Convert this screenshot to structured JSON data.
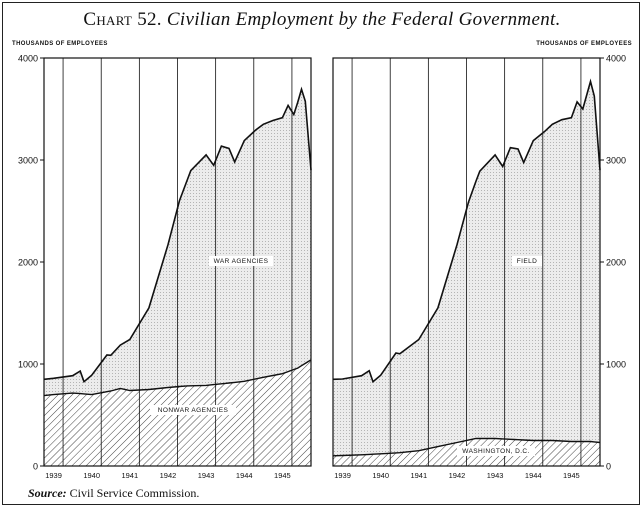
{
  "title": {
    "lead": "Chart 52.",
    "text": "Civilian Employment by the Federal Government."
  },
  "source": {
    "label": "Source:",
    "text": "Civil Service Commission."
  },
  "colors": {
    "ink": "#111111",
    "fill": "#e6e6e6",
    "hatch": "#444444",
    "background": "#ffffff"
  },
  "chart_data": [
    {
      "type": "area",
      "panel": "left",
      "ylabel": "THOUSANDS OF EMPLOYEES",
      "ylim": [
        0,
        4000
      ],
      "yticks": [
        0,
        1000,
        2000,
        3000,
        4000
      ],
      "xlim": [
        1938.75,
        1945.75
      ],
      "xticks": [
        1939,
        1940,
        1941,
        1942,
        1943,
        1944,
        1945
      ],
      "grid": "vertical lines at year boundaries",
      "stacked": true,
      "series": [
        {
          "name": "NONWAR AGENCIES",
          "fill": "hatched",
          "x": [
            1938.75,
            1939.0,
            1939.5,
            1939.7,
            1940.0,
            1940.5,
            1940.75,
            1941.0,
            1941.5,
            1942.0,
            1942.5,
            1943.0,
            1943.5,
            1944.0,
            1944.5,
            1945.0,
            1945.4,
            1945.75
          ],
          "values": [
            690,
            700,
            715,
            710,
            700,
            735,
            760,
            740,
            750,
            770,
            785,
            790,
            810,
            830,
            870,
            905,
            960,
            1040
          ]
        },
        {
          "name": "WAR AGENCIES",
          "fill": "dotted",
          "x": [
            1938.75,
            1939.0,
            1939.5,
            1939.7,
            1939.8,
            1940.0,
            1940.4,
            1940.5,
            1941.0,
            1941.5,
            1942.0,
            1942.3,
            1942.6,
            1943.0,
            1943.2,
            1943.4,
            1943.6,
            1943.75,
            1944.0,
            1944.3,
            1944.5,
            1944.75,
            1945.0,
            1945.15,
            1945.3,
            1945.5,
            1945.6,
            1945.75
          ],
          "values": [
            160,
            160,
            170,
            220,
            120,
            190,
            360,
            350,
            500,
            800,
            1400,
            1820,
            2110,
            2260,
            2150,
            2330,
            2300,
            2160,
            2360,
            2440,
            2480,
            2500,
            2510,
            2610,
            2500,
            2710,
            2570,
            1860
          ]
        }
      ]
    },
    {
      "type": "area",
      "panel": "right",
      "ylabel": "THOUSANDS OF EMPLOYEES",
      "ylim": [
        0,
        4000
      ],
      "yticks": [
        0,
        1000,
        2000,
        3000,
        4000
      ],
      "xlim": [
        1938.75,
        1945.75
      ],
      "xticks": [
        1939,
        1940,
        1941,
        1942,
        1943,
        1944,
        1945
      ],
      "grid": "vertical lines at year boundaries",
      "stacked": true,
      "series": [
        {
          "name": "WASHINGTON, D.C.",
          "fill": "hatched",
          "x": [
            1938.75,
            1939.5,
            1940.0,
            1940.5,
            1941.0,
            1941.5,
            1942.0,
            1942.5,
            1943.0,
            1943.5,
            1944.0,
            1944.5,
            1945.0,
            1945.5,
            1945.75
          ],
          "values": [
            100,
            110,
            120,
            130,
            150,
            190,
            230,
            270,
            270,
            260,
            250,
            250,
            240,
            240,
            230
          ]
        },
        {
          "name": "FIELD",
          "fill": "dotted",
          "x": [
            1938.75,
            1939.0,
            1939.5,
            1939.7,
            1939.8,
            1940.0,
            1940.4,
            1940.5,
            1941.0,
            1941.5,
            1942.0,
            1942.3,
            1942.6,
            1943.0,
            1943.2,
            1943.4,
            1943.6,
            1943.75,
            1944.0,
            1944.3,
            1944.5,
            1944.75,
            1945.0,
            1945.15,
            1945.3,
            1945.5,
            1945.6,
            1945.75
          ],
          "values": [
            750,
            750,
            775,
            820,
            710,
            770,
            980,
            970,
            1090,
            1360,
            1940,
            2330,
            2620,
            2780,
            2670,
            2860,
            2850,
            2720,
            2940,
            3030,
            3100,
            3150,
            3175,
            3330,
            3260,
            3530,
            3390,
            2670
          ]
        }
      ]
    }
  ]
}
